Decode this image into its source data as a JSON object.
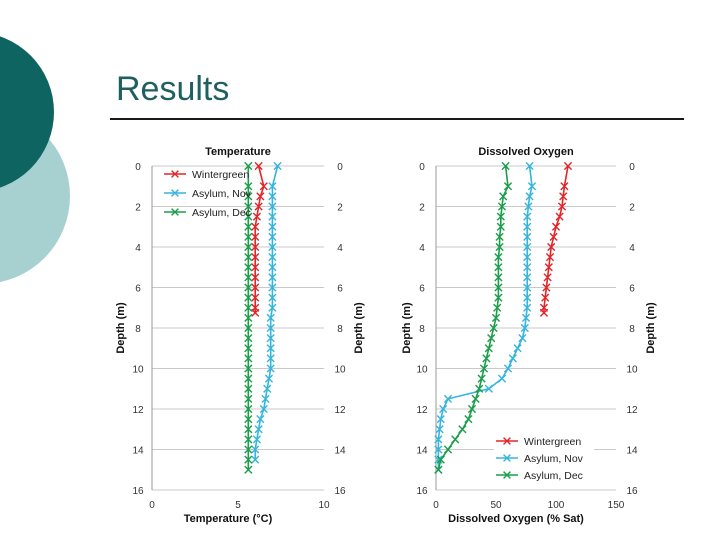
{
  "slide": {
    "title": "Results"
  },
  "colors": {
    "bg_teal_dark": "#0e6461",
    "bg_teal_light": "#a7d0d0",
    "title_text": "#1f5f5f",
    "rule": "#1a1a1a",
    "grid": "#c9c9c9",
    "wintergreen": "#e0262a",
    "asylum_nov": "#35b5dd",
    "asylum_dec": "#1a9e4a"
  },
  "chart_data": [
    {
      "type": "line",
      "title": "Temperature",
      "xlabel": "Temperature (°C)",
      "ylabel": "Depth (m)",
      "right_ylabel": "Depth (m)",
      "xlim": [
        0,
        10
      ],
      "ylim": [
        0,
        16
      ],
      "y_inverted": true,
      "grid": true,
      "xticks": [
        "0",
        "5",
        "10"
      ],
      "yticks": [
        "0",
        "2",
        "4",
        "6",
        "8",
        "10",
        "12",
        "14",
        "16"
      ],
      "legend": {
        "placement": "top-left",
        "entries": [
          "Wintergreen",
          "Asylum, Nov",
          "Asylum, Dec"
        ]
      },
      "series": [
        {
          "name": "Wintergreen",
          "color_key": "wintergreen",
          "x": [
            6.2,
            6.5,
            6.3,
            6.2,
            6.1,
            6.0,
            6.0,
            6.0,
            6.0,
            6.0,
            6.0,
            6.0,
            6.0,
            6.0,
            6.0
          ],
          "y": [
            0.0,
            1.0,
            1.5,
            2.0,
            2.5,
            3.0,
            3.5,
            4.0,
            4.5,
            5.0,
            5.5,
            6.0,
            6.5,
            7.0,
            7.25
          ]
        },
        {
          "name": "Asylum, Nov",
          "color_key": "asylum_nov",
          "x": [
            7.3,
            7.0,
            7.0,
            7.0,
            7.0,
            7.0,
            7.0,
            7.0,
            7.0,
            7.0,
            7.0,
            7.0,
            7.0,
            7.0,
            6.9,
            6.9,
            6.9,
            6.9,
            6.9,
            6.9,
            6.8,
            6.7,
            6.6,
            6.5,
            6.3,
            6.2,
            6.1,
            6.0,
            6.0
          ],
          "y": [
            0.0,
            1.0,
            1.5,
            2.0,
            2.5,
            3.0,
            3.5,
            4.0,
            4.5,
            5.0,
            5.5,
            6.0,
            6.5,
            7.0,
            7.5,
            8.0,
            8.5,
            9.0,
            9.5,
            10.0,
            10.5,
            11.0,
            11.5,
            12.0,
            12.5,
            13.0,
            13.5,
            14.0,
            14.5
          ]
        },
        {
          "name": "Asylum, Dec",
          "color_key": "asylum_dec",
          "x": [
            5.6,
            5.6,
            5.6,
            5.6,
            5.6,
            5.6,
            5.6,
            5.6,
            5.6,
            5.6,
            5.6,
            5.6,
            5.6,
            5.6,
            5.6,
            5.6,
            5.6,
            5.6,
            5.6,
            5.6,
            5.6,
            5.6,
            5.6,
            5.6,
            5.6,
            5.6,
            5.6,
            5.6,
            5.6,
            5.6
          ],
          "y": [
            0.0,
            1.0,
            1.5,
            2.0,
            2.5,
            3.0,
            3.5,
            4.0,
            4.5,
            5.0,
            5.5,
            6.0,
            6.5,
            7.0,
            7.5,
            8.0,
            8.5,
            9.0,
            9.5,
            10.0,
            10.5,
            11.0,
            11.5,
            12.0,
            12.5,
            13.0,
            13.5,
            14.0,
            14.5,
            15.0
          ]
        }
      ]
    },
    {
      "type": "line",
      "title": "Dissolved Oxygen",
      "xlabel": "Dissolved Oxygen (% Sat)",
      "ylabel": "Depth (m)",
      "right_ylabel": "Depth (m)",
      "xlim": [
        0,
        150
      ],
      "ylim": [
        0,
        16
      ],
      "y_inverted": true,
      "grid": true,
      "xticks": [
        "0",
        "50",
        "100",
        "150"
      ],
      "yticks": [
        "0",
        "2",
        "4",
        "6",
        "8",
        "10",
        "12",
        "14",
        "16"
      ],
      "legend": {
        "placement": "bottom-right",
        "entries": [
          "Wintergreen",
          "Asylum, Nov",
          "Asylum, Dec"
        ]
      },
      "series": [
        {
          "name": "Wintergreen",
          "color_key": "wintergreen",
          "x": [
            110,
            107,
            106,
            105,
            103,
            100,
            98,
            96,
            95,
            94,
            93,
            92,
            91,
            90,
            90
          ],
          "y": [
            0.0,
            1.0,
            1.5,
            2.0,
            2.5,
            3.0,
            3.5,
            4.0,
            4.5,
            5.0,
            5.5,
            6.0,
            6.5,
            7.0,
            7.25
          ]
        },
        {
          "name": "Asylum, Nov",
          "color_key": "asylum_nov",
          "x": [
            78,
            80,
            78,
            77,
            76,
            76,
            76,
            76,
            76,
            76,
            76,
            76,
            76,
            76,
            75,
            74,
            72,
            68,
            64,
            60,
            55,
            44,
            10,
            6,
            4,
            3,
            2,
            2,
            2,
            2
          ],
          "y": [
            0.0,
            1.0,
            1.5,
            2.0,
            2.5,
            3.0,
            3.5,
            4.0,
            4.5,
            5.0,
            5.5,
            6.0,
            6.5,
            7.0,
            7.5,
            8.0,
            8.5,
            9.0,
            9.5,
            10.0,
            10.5,
            11.0,
            11.5,
            12.0,
            12.5,
            13.0,
            13.5,
            14.0,
            14.5,
            15.0
          ]
        },
        {
          "name": "Asylum, Dec",
          "color_key": "asylum_dec",
          "x": [
            58,
            60,
            56,
            55,
            54,
            54,
            53,
            53,
            52,
            52,
            52,
            52,
            52,
            51,
            50,
            48,
            46,
            44,
            42,
            40,
            38,
            36,
            33,
            30,
            27,
            22,
            16,
            10,
            4,
            2
          ],
          "y": [
            0.0,
            1.0,
            1.5,
            2.0,
            2.5,
            3.0,
            3.5,
            4.0,
            4.5,
            5.0,
            5.5,
            6.0,
            6.5,
            7.0,
            7.5,
            8.0,
            8.5,
            9.0,
            9.5,
            10.0,
            10.5,
            11.0,
            11.5,
            12.0,
            12.5,
            13.0,
            13.5,
            14.0,
            14.5,
            15.0
          ]
        }
      ]
    }
  ]
}
